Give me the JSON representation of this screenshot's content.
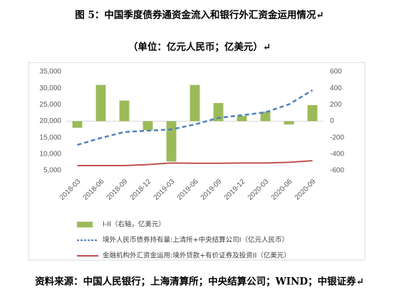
{
  "chart_data": {
    "type": "bar-line",
    "title": "图 5：中国季度债券通资金流入和银行外汇资金运用情况↵",
    "subtitle": "（单位：亿元人民币；亿美元）↵",
    "source": "资料来源：中国人民银行；上海清算所；中央结算公司；WIND；中银证券↵",
    "categories": [
      "2018-03",
      "2018-06",
      "2018-09",
      "2018-12",
      "2019-03",
      "2019-06",
      "2019-09",
      "2019-12",
      "2020-03",
      "2020-06",
      "2020-09"
    ],
    "series": [
      {
        "name": "I-II（右轴，亿美元）",
        "type": "bar",
        "axis": "y2",
        "color": "#9bbb59",
        "values": [
          -80,
          440,
          250,
          -110,
          -490,
          440,
          220,
          65,
          115,
          -40,
          195
        ]
      },
      {
        "name": "境外人民币债券持有量:上清所+中央结算公司I（亿元人民币）",
        "type": "line",
        "dashed": true,
        "color": "#4f81bd",
        "values": [
          12800,
          14900,
          16700,
          17100,
          17500,
          19000,
          21000,
          21800,
          22700,
          25100,
          29400
        ]
      },
      {
        "name": "金融机构外汇资金运用:境外贷款+有价证券及投资II（亿美元）",
        "type": "line",
        "dashed": false,
        "color": "#c0504d",
        "values": [
          6500,
          6500,
          6500,
          6800,
          7300,
          7200,
          7200,
          7300,
          7300,
          7500,
          8000
        ]
      }
    ],
    "ylim": [
      5000,
      35000
    ],
    "yticks": [
      {
        "value": 5000,
        "label": "5,000"
      },
      {
        "value": 10000,
        "label": "10,000"
      },
      {
        "value": 15000,
        "label": "15,000"
      },
      {
        "value": 20000,
        "label": "20,000"
      },
      {
        "value": 25000,
        "label": "25,000"
      },
      {
        "value": 30000,
        "label": "30,000"
      },
      {
        "value": 35000,
        "label": "35,000"
      }
    ],
    "y2lim": [
      -600,
      600
    ],
    "y2ticks": [
      -600,
      -400,
      -200,
      0,
      200,
      400,
      600
    ],
    "grid": false
  }
}
